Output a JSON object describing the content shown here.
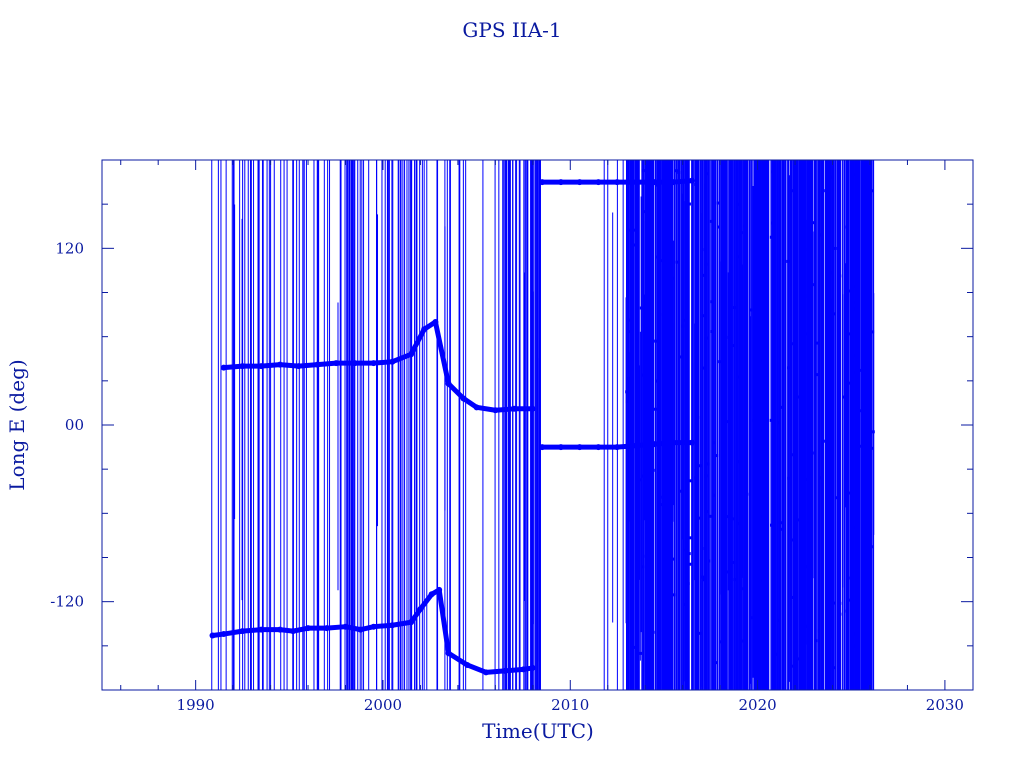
{
  "chart_data": {
    "type": "scatter",
    "title": "GPS IIA-1",
    "xlabel": "Time(UTC)",
    "ylabel": "Long E (deg)",
    "xlim": [
      1985,
      2031.5
    ],
    "ylim": [
      -180,
      180
    ],
    "x_ticks": [
      1990,
      2000,
      2010,
      2020,
      2030
    ],
    "x_tick_labels": [
      "1990",
      "2000",
      "2010",
      "2020",
      "2030"
    ],
    "y_ticks": [
      120,
      0,
      -120
    ],
    "y_tick_labels": [
      "120",
      "00",
      "-120"
    ],
    "grid": false,
    "colors": {
      "axis": "#0a1aa0",
      "data": "#0000ff",
      "background": "#ffffff"
    },
    "series": [
      {
        "values": [
          [
            1990.9,
            -143
          ],
          [
            1991.5,
            -142
          ],
          [
            1992.5,
            -140
          ],
          [
            1993.5,
            -139
          ],
          [
            1994.5,
            -139
          ],
          [
            1995.2,
            -140
          ],
          [
            1996,
            -138
          ],
          [
            1997,
            -138
          ],
          [
            1998,
            -137
          ],
          [
            1998.8,
            -139
          ],
          [
            1999.5,
            -137
          ],
          [
            2000.5,
            -136
          ],
          [
            2001.5,
            -134
          ],
          [
            2002.0,
            -125
          ],
          [
            2002.6,
            -115
          ],
          [
            2003.0,
            -112
          ],
          [
            2003.5,
            -155
          ],
          [
            2004.5,
            -163
          ],
          [
            2005.5,
            -168
          ],
          [
            2006.5,
            -167
          ],
          [
            2007.5,
            -166
          ],
          [
            2008.0,
            -165
          ]
        ]
      },
      {
        "values": [
          [
            1991.5,
            39
          ],
          [
            1992.5,
            40
          ],
          [
            1993.5,
            40
          ],
          [
            1994.5,
            41
          ],
          [
            1995.5,
            40
          ],
          [
            1996.5,
            41
          ],
          [
            1997.5,
            42
          ],
          [
            1998.5,
            42
          ],
          [
            1999.5,
            42
          ],
          [
            2000.5,
            43
          ],
          [
            2001.5,
            48
          ],
          [
            2002.2,
            65
          ],
          [
            2002.8,
            70
          ],
          [
            2003.5,
            28
          ],
          [
            2004.3,
            18
          ],
          [
            2005.0,
            12
          ],
          [
            2006.0,
            10
          ],
          [
            2007.0,
            11
          ],
          [
            2008.0,
            11
          ]
        ]
      },
      {
        "values": [
          [
            2008.5,
            165
          ],
          [
            2009.5,
            165
          ],
          [
            2010.5,
            165
          ],
          [
            2011.5,
            165
          ],
          [
            2012.5,
            165
          ],
          [
            2013.5,
            165
          ],
          [
            2014.5,
            165
          ],
          [
            2015.5,
            165
          ],
          [
            2016.5,
            166
          ]
        ]
      },
      {
        "values": [
          [
            2008.5,
            -15
          ],
          [
            2009.5,
            -15
          ],
          [
            2010.5,
            -15
          ],
          [
            2011.5,
            -15
          ],
          [
            2012.5,
            -15
          ],
          [
            2013.5,
            -14
          ],
          [
            2014.5,
            -13
          ],
          [
            2015.5,
            -12
          ],
          [
            2016.5,
            -12
          ]
        ]
      }
    ]
  }
}
